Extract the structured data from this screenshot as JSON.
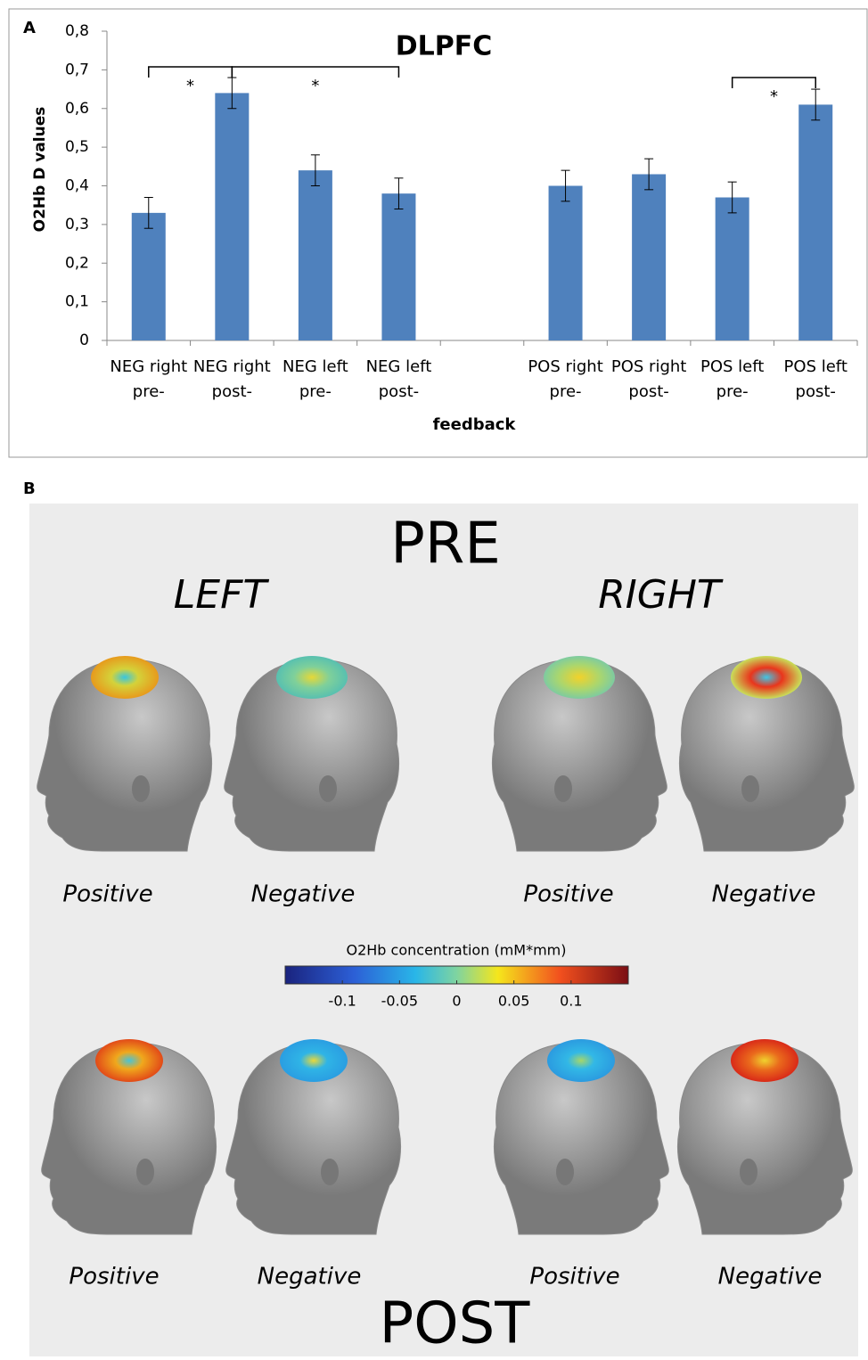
{
  "chart_data": {
    "type": "bar",
    "panel": "A",
    "title": "DLPFC",
    "x_label": "feedback",
    "y_label": "O2Hb D values",
    "categories": [
      [
        "NEG right",
        "pre-"
      ],
      [
        "NEG right",
        "post-"
      ],
      [
        "NEG left",
        "pre-"
      ],
      [
        "NEG left",
        "post-"
      ],
      null,
      [
        "POS right",
        "pre-"
      ],
      [
        "POS right",
        "post-"
      ],
      [
        "POS left",
        "pre-"
      ],
      [
        "POS left",
        "post-"
      ]
    ],
    "values": [
      0.33,
      0.64,
      0.44,
      0.38,
      null,
      0.4,
      0.43,
      0.37,
      0.61
    ],
    "errors": [
      0.04,
      0.04,
      0.04,
      0.04,
      null,
      0.04,
      0.04,
      0.04,
      0.04
    ],
    "color": "#4f81bd",
    "ylim": [
      0,
      0.8
    ],
    "yticks": [
      0,
      {
        "value": 0.1,
        "label": "0,1"
      },
      {
        "value": 0.2,
        "label": "0,2"
      },
      {
        "value": 0.3,
        "label": "0,3"
      },
      {
        "value": 0.4,
        "label": "0,4"
      },
      {
        "value": 0.5,
        "label": "0,5"
      },
      {
        "value": 0.6,
        "label": "0,6"
      },
      {
        "value": 0.7,
        "label": "0,7"
      },
      {
        "value": 0.8,
        "label": "0,8"
      }
    ],
    "annotations": [
      "*",
      "*",
      "*"
    ]
  },
  "panel_b": {
    "panel": "B",
    "top": "PRE",
    "bottom": "POST",
    "sides": [
      "LEFT",
      "RIGHT"
    ],
    "pre_labels": [
      "Positive",
      "Negative",
      "Positive",
      "Negative"
    ],
    "post_labels": [
      "Positive",
      "Negative",
      "Positive",
      "Negative"
    ],
    "colorbar": {
      "title": "O2Hb concentration (mM*mm)",
      "xlim": [
        -0.15,
        0.15
      ],
      "xticks": [
        -0.1,
        -0.05,
        0,
        0.05,
        0.1
      ]
    }
  }
}
